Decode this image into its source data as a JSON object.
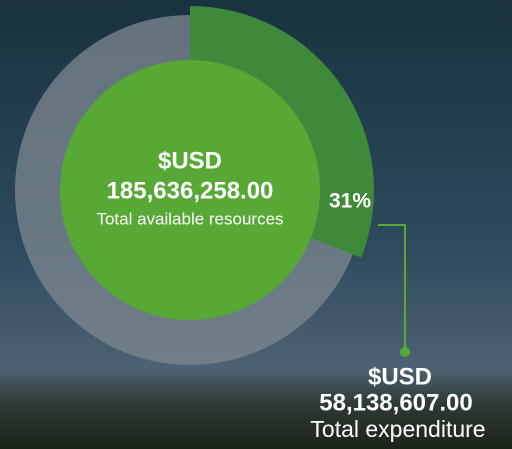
{
  "chart_data": {
    "type": "donut",
    "values": [
      31
    ],
    "value_labels": [
      "31%"
    ],
    "color": "#3f8a3a",
    "track_color": "#7d8890",
    "center_color": "#57a834",
    "center": {
      "currency": "$USD",
      "amount": "185,636,258.00",
      "label": "Total available resources"
    },
    "segment": {
      "currency": "$USD",
      "amount": "58,138,607.00",
      "label": "Total expenditure"
    }
  }
}
